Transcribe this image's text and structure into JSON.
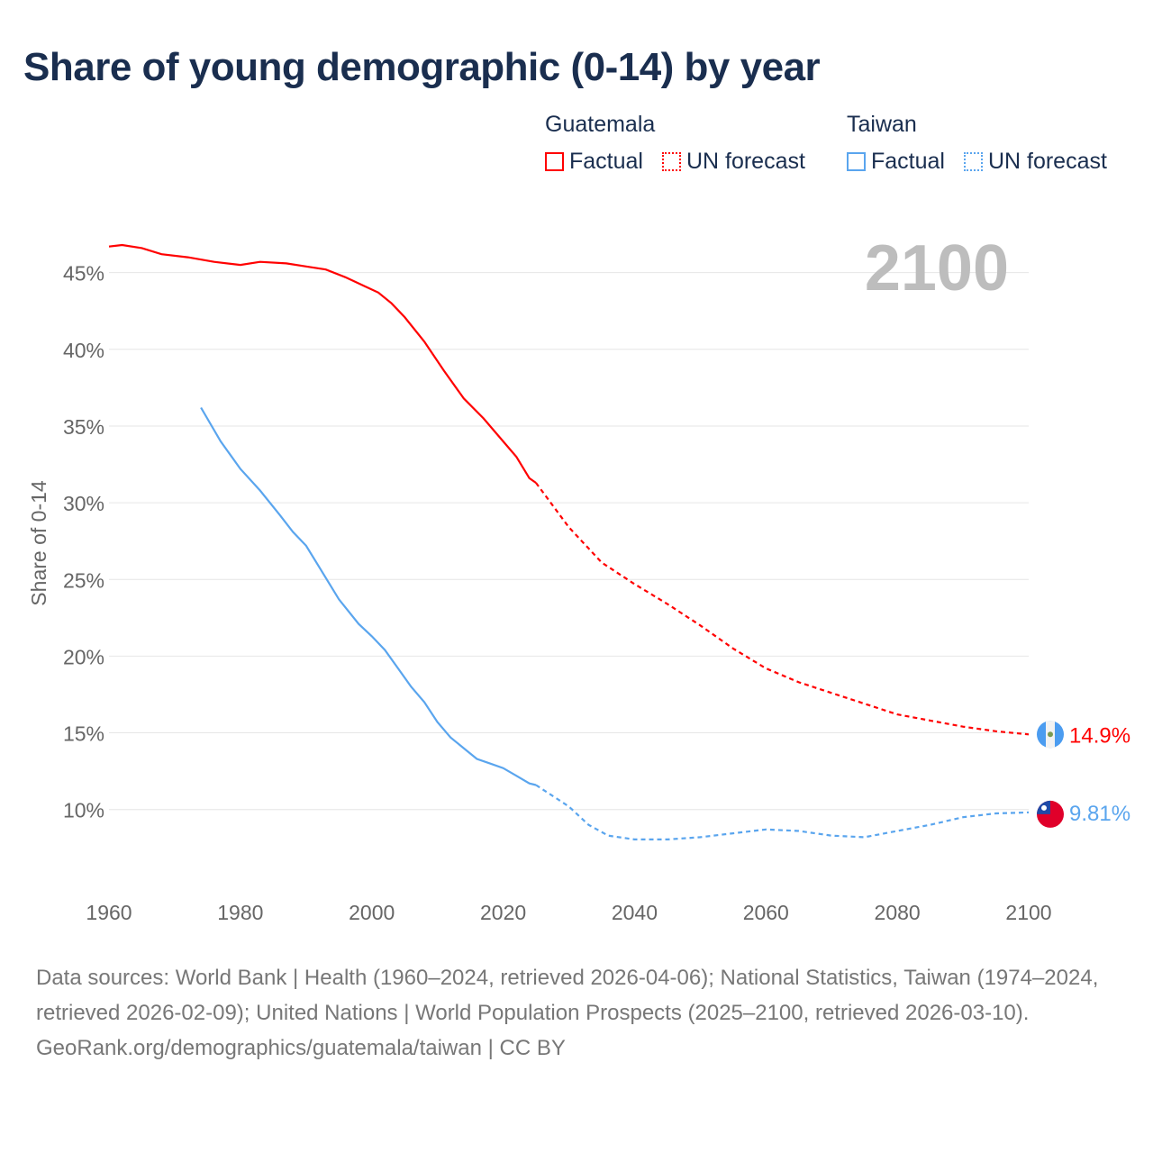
{
  "chart_data": {
    "type": "line",
    "title": "Share of young demographic (0-14) by year",
    "ylabel": "Share of 0-14",
    "xlabel": "",
    "xlim": [
      1960,
      2100
    ],
    "ylim": [
      5,
      47
    ],
    "xticks": [
      "1960",
      "1980",
      "2000",
      "2020",
      "2040",
      "2060",
      "2080",
      "2100"
    ],
    "yticks": [
      "10%",
      "15%",
      "20%",
      "25%",
      "30%",
      "35%",
      "40%",
      "45%"
    ],
    "grid": true,
    "current_year_label": "2100",
    "legend": {
      "placement": "top-right",
      "groups": [
        {
          "name": "Guatemala",
          "factual": "Factual",
          "forecast": "UN forecast"
        },
        {
          "name": "Taiwan",
          "factual": "Factual",
          "forecast": "UN forecast"
        }
      ]
    },
    "series": [
      {
        "name": "Guatemala",
        "color": "#ff0000",
        "end_label": "14.9%",
        "factual": {
          "x": [
            1960,
            1962,
            1965,
            1968,
            1972,
            1976,
            1980,
            1983,
            1987,
            1990,
            1993,
            1996,
            1999,
            2001,
            2003,
            2005,
            2008,
            2011,
            2014,
            2017,
            2020,
            2022,
            2024,
            2025
          ],
          "y": [
            46.7,
            46.8,
            46.6,
            46.2,
            46.0,
            45.7,
            45.5,
            45.7,
            45.6,
            45.4,
            45.2,
            44.7,
            44.1,
            43.7,
            43.0,
            42.1,
            40.5,
            38.6,
            36.8,
            35.5,
            34.0,
            33.0,
            31.6,
            31.3
          ]
        },
        "forecast": {
          "x": [
            2025,
            2030,
            2035,
            2040,
            2045,
            2050,
            2055,
            2060,
            2065,
            2070,
            2075,
            2080,
            2085,
            2090,
            2095,
            2100
          ],
          "y": [
            31.3,
            28.4,
            26.1,
            24.7,
            23.4,
            22.0,
            20.5,
            19.2,
            18.3,
            17.6,
            16.9,
            16.2,
            15.8,
            15.4,
            15.1,
            14.9
          ]
        }
      },
      {
        "name": "Taiwan",
        "color": "#5aa5ee",
        "end_label": "9.81%",
        "factual": {
          "x": [
            1974,
            1977,
            1980,
            1983,
            1986,
            1988,
            1990,
            1992,
            1995,
            1998,
            2000,
            2002,
            2004,
            2006,
            2008,
            2010,
            2012,
            2014,
            2016,
            2018,
            2020,
            2022,
            2024,
            2025
          ],
          "y": [
            36.2,
            34.0,
            32.2,
            30.8,
            29.2,
            28.1,
            27.2,
            25.8,
            23.7,
            22.1,
            21.3,
            20.4,
            19.2,
            18.0,
            17.0,
            15.7,
            14.7,
            14.0,
            13.3,
            13.0,
            12.7,
            12.2,
            11.7,
            11.6
          ]
        },
        "forecast": {
          "x": [
            2025,
            2030,
            2033,
            2036,
            2040,
            2045,
            2050,
            2055,
            2060,
            2065,
            2070,
            2075,
            2080,
            2085,
            2090,
            2095,
            2100
          ],
          "y": [
            11.6,
            10.2,
            9.0,
            8.3,
            8.05,
            8.05,
            8.2,
            8.45,
            8.7,
            8.6,
            8.3,
            8.2,
            8.6,
            9.0,
            9.5,
            9.75,
            9.81
          ]
        }
      }
    ]
  },
  "footer": {
    "sources": "Data sources: World Bank | Health (1960–2024, retrieved 2026-04-06); National Statistics, Taiwan (1974–2024, retrieved 2026-02-09); United Nations | World Population Prospects (2025–2100, retrieved 2026-03-10).",
    "credit": "GeoRank.org/demographics/guatemala/taiwan | CC BY"
  }
}
